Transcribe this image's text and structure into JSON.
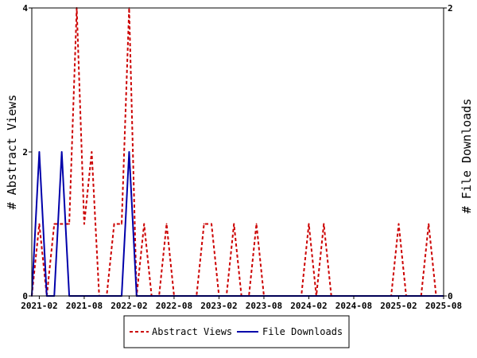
{
  "chart_data": {
    "type": "line",
    "x": [
      "2021-01",
      "2021-02",
      "2021-03",
      "2021-04",
      "2021-05",
      "2021-06",
      "2021-07",
      "2021-08",
      "2021-09",
      "2021-10",
      "2021-11",
      "2021-12",
      "2022-01",
      "2022-02",
      "2022-03",
      "2022-04",
      "2022-05",
      "2022-06",
      "2022-07",
      "2022-08",
      "2022-09",
      "2022-10",
      "2022-11",
      "2022-12",
      "2023-01",
      "2023-02",
      "2023-03",
      "2023-04",
      "2023-05",
      "2023-06",
      "2023-07",
      "2023-08",
      "2023-09",
      "2023-10",
      "2023-11",
      "2023-12",
      "2024-01",
      "2024-02",
      "2024-03",
      "2024-04",
      "2024-05",
      "2024-06",
      "2024-07",
      "2024-08",
      "2024-09",
      "2024-10",
      "2024-11",
      "2024-12",
      "2025-01",
      "2025-02",
      "2025-03",
      "2025-04",
      "2025-05",
      "2025-06",
      "2025-07",
      "2025-08"
    ],
    "x_tick_labels": [
      "2021-02",
      "2021-08",
      "2022-02",
      "2022-08",
      "2023-02",
      "2023-08",
      "2024-02",
      "2024-08",
      "2025-02",
      "2025-08"
    ],
    "series": [
      {
        "name": "Abstract Views",
        "axis": "left",
        "color": "#cc0000",
        "style": "dashed",
        "values": [
          0,
          1,
          0,
          1,
          1,
          1,
          4,
          1,
          2,
          0,
          0,
          1,
          1,
          4,
          0,
          1,
          0,
          0,
          1,
          0,
          0,
          0,
          0,
          1,
          1,
          0,
          0,
          1,
          0,
          0,
          1,
          0,
          0,
          0,
          0,
          0,
          0,
          1,
          0,
          1,
          0,
          0,
          0,
          0,
          0,
          0,
          0,
          0,
          0,
          1,
          0,
          0,
          0,
          1,
          0,
          0
        ]
      },
      {
        "name": "File Downloads",
        "axis": "right",
        "color": "#0000aa",
        "style": "solid",
        "values": [
          0,
          1,
          0,
          0,
          1,
          0,
          0,
          0,
          0,
          0,
          0,
          0,
          0,
          1,
          0,
          0,
          0,
          0,
          0,
          0,
          0,
          0,
          0,
          0,
          0,
          0,
          0,
          0,
          0,
          0,
          0,
          0,
          0,
          0,
          0,
          0,
          0,
          0,
          0,
          0,
          0,
          0,
          0,
          0,
          0,
          0,
          0,
          0,
          0,
          0,
          0,
          0,
          0,
          0,
          0,
          0
        ]
      }
    ],
    "ylabel": "# Abstract Views",
    "ylabel_right": "# File Downloads",
    "ylim": [
      0,
      4
    ],
    "ylim_right": [
      0,
      2
    ],
    "y_ticks": [
      "0",
      "2",
      "4"
    ],
    "y_ticks_right": [
      "0",
      "2"
    ],
    "grid": false,
    "legend_position": "bottom-center"
  }
}
